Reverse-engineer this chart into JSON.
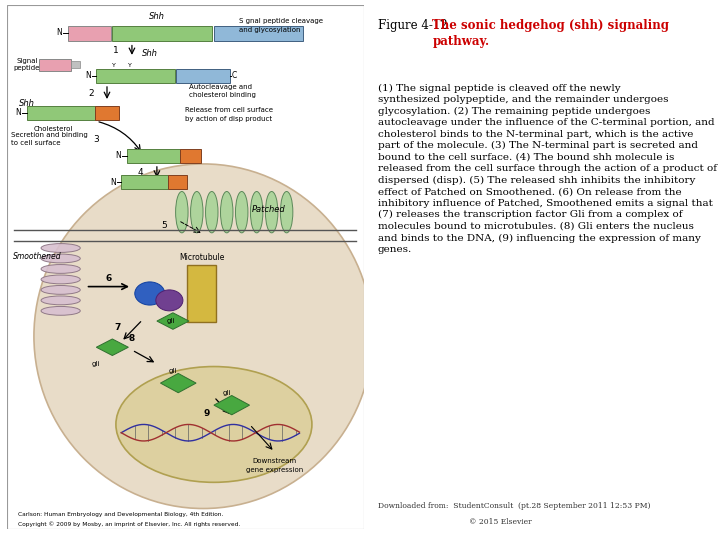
{
  "fig_label": "Figure 4-12 ",
  "title_bold": "The sonic hedgehog (shh) signaling\npathway.",
  "title_color": "#cc0000",
  "body_text": "(1) The signal peptide is cleaved off the newly\nsynthesized polypeptide, and the remainder undergoes\nglycosylation. (2) The remaining peptide undergoes\nautocleavage under the influence of the C-terminal portion, and\ncholesterol binds to the N-terminal part, which is the active\npart of the molecule. (3) The N-terminal part is secreted and\nbound to the cell surface. (4) The bound shh molecule is\nreleased from the cell surface through the action of a product of\ndispersed (disp). (5) The released shh inhibits the inhibitory\neffect of Patched on Smoothened. (6) On release from the\ninhibitory influence of Patched, Smoothened emits a signal that\n(7) releases the transcription factor Gli from a complex of\nmolecules bound to microtubules. (8) Gli enters the nucleus\nand binds to the DNA, (9) influencing the expression of many\ngenes.",
  "text_color": "#000000",
  "bg_color": "#ffffff",
  "left_panel_bg": "#f5f0e8",
  "footer_text1": "Downloaded from:  StudentConsult  (pt.28 September 2011 12:53 PM)",
  "footer_text2": "© 2015 Elsevier",
  "font_size_body": 7.5,
  "font_size_title": 8.5,
  "font_size_footer": 5.5
}
